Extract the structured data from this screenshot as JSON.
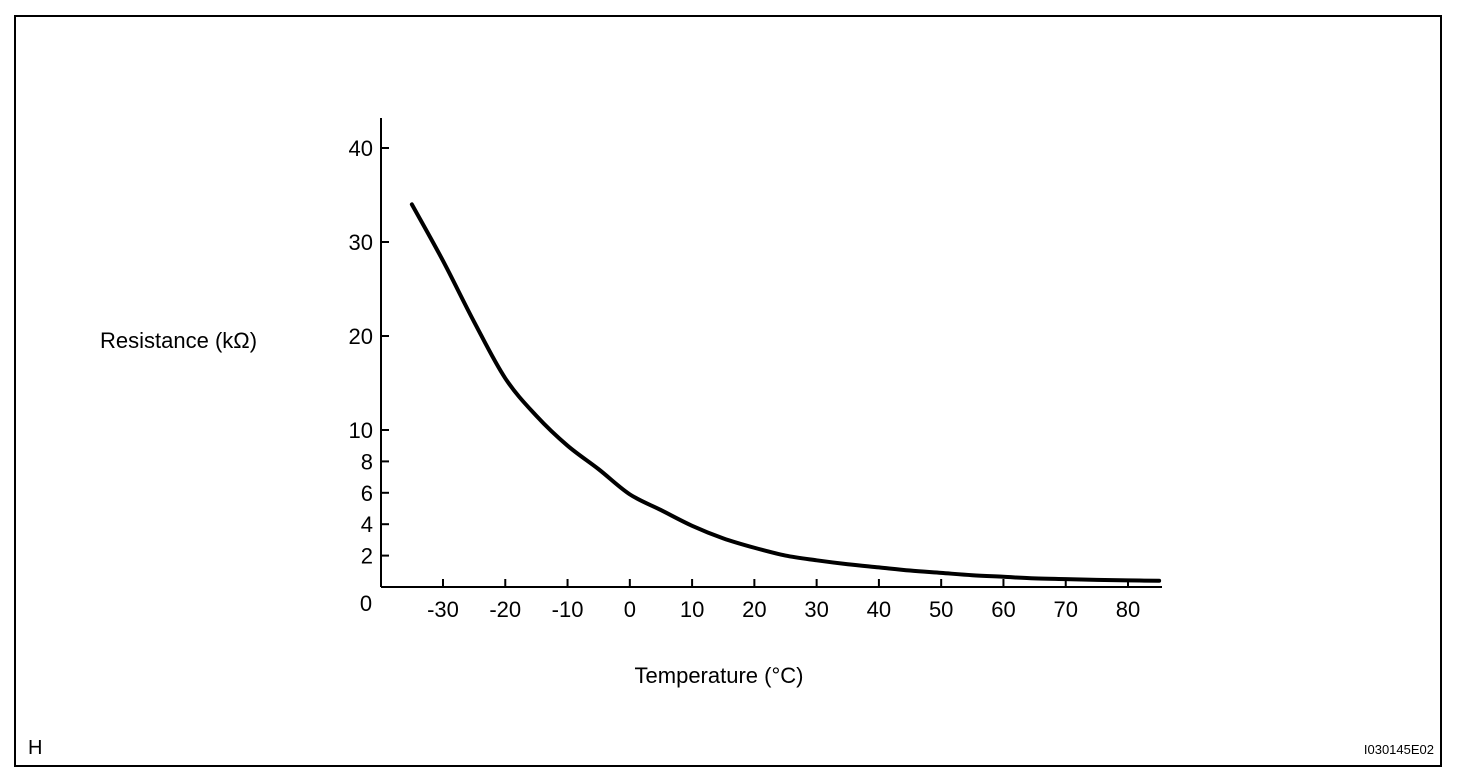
{
  "corner_labels": {
    "left": "H",
    "right": "I030145E02"
  },
  "chart_data": {
    "type": "line",
    "xlabel": "Temperature (°C)",
    "ylabel": "Resistance (kΩ)",
    "xlim": [
      -40,
      85
    ],
    "ylim": [
      0,
      43
    ],
    "grid": false,
    "x_ticks": [
      -30,
      -20,
      -10,
      0,
      10,
      20,
      30,
      40,
      50,
      60,
      70,
      80
    ],
    "y_ticks": [
      0,
      2,
      4,
      6,
      8,
      10,
      20,
      30,
      40
    ],
    "y_scale_note": "non-linear: 0-10 compressed, 10-40 expanded",
    "series": [
      {
        "x": [
          -35,
          -30,
          -25,
          -20,
          -15,
          -10,
          -5,
          0,
          5,
          10,
          15,
          20,
          25,
          30,
          35,
          40,
          45,
          50,
          55,
          60,
          65,
          70,
          75,
          80,
          85
        ],
        "y": [
          34,
          28,
          21.5,
          15.5,
          11.5,
          9.0,
          7.5,
          5.9,
          4.9,
          3.9,
          3.1,
          2.5,
          2.0,
          1.7,
          1.45,
          1.25,
          1.05,
          0.9,
          0.75,
          0.65,
          0.55,
          0.5,
          0.45,
          0.42,
          0.4
        ]
      }
    ]
  }
}
